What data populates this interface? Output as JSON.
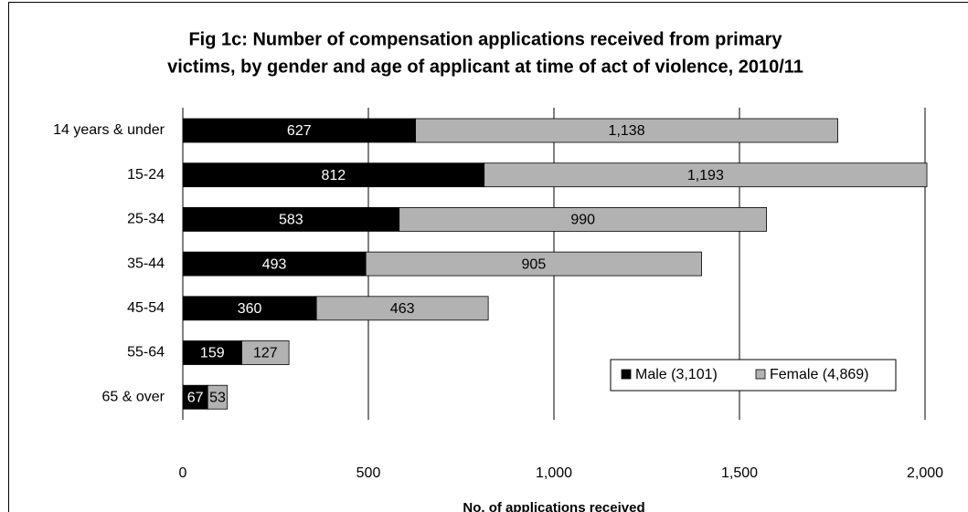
{
  "chart_data": {
    "type": "stacked-bar-horizontal",
    "title": [
      "Fig 1c: Number of compensation applications received from primary",
      "victims, by gender and age of applicant at time of act of violence, 2010/11"
    ],
    "x_label": "No. of applications received",
    "categories": [
      "14 years & under",
      "15-24",
      "25-34",
      "35-44",
      "45-54",
      "55-64",
      "65 & over"
    ],
    "series": [
      {
        "name": "Male (3,101)",
        "color": "#000000",
        "values": [
          627,
          812,
          583,
          493,
          360,
          159,
          67
        ]
      },
      {
        "name": "Female (4,869)",
        "color": "#b2b2b2",
        "values": [
          1138,
          1193,
          990,
          905,
          463,
          127,
          53
        ],
        "value_labels": [
          "1,138",
          "1,193",
          "990",
          "905",
          "463",
          "127",
          "53"
        ]
      }
    ],
    "xlim": [
      0,
      2000
    ],
    "xticks": [
      0,
      500,
      {
        "value": 1000,
        "label": "1,000"
      },
      {
        "value": 1500,
        "label": "1,500"
      },
      {
        "value": 2000,
        "label": "2,000"
      }
    ],
    "grid": true,
    "legend": "lower right"
  }
}
